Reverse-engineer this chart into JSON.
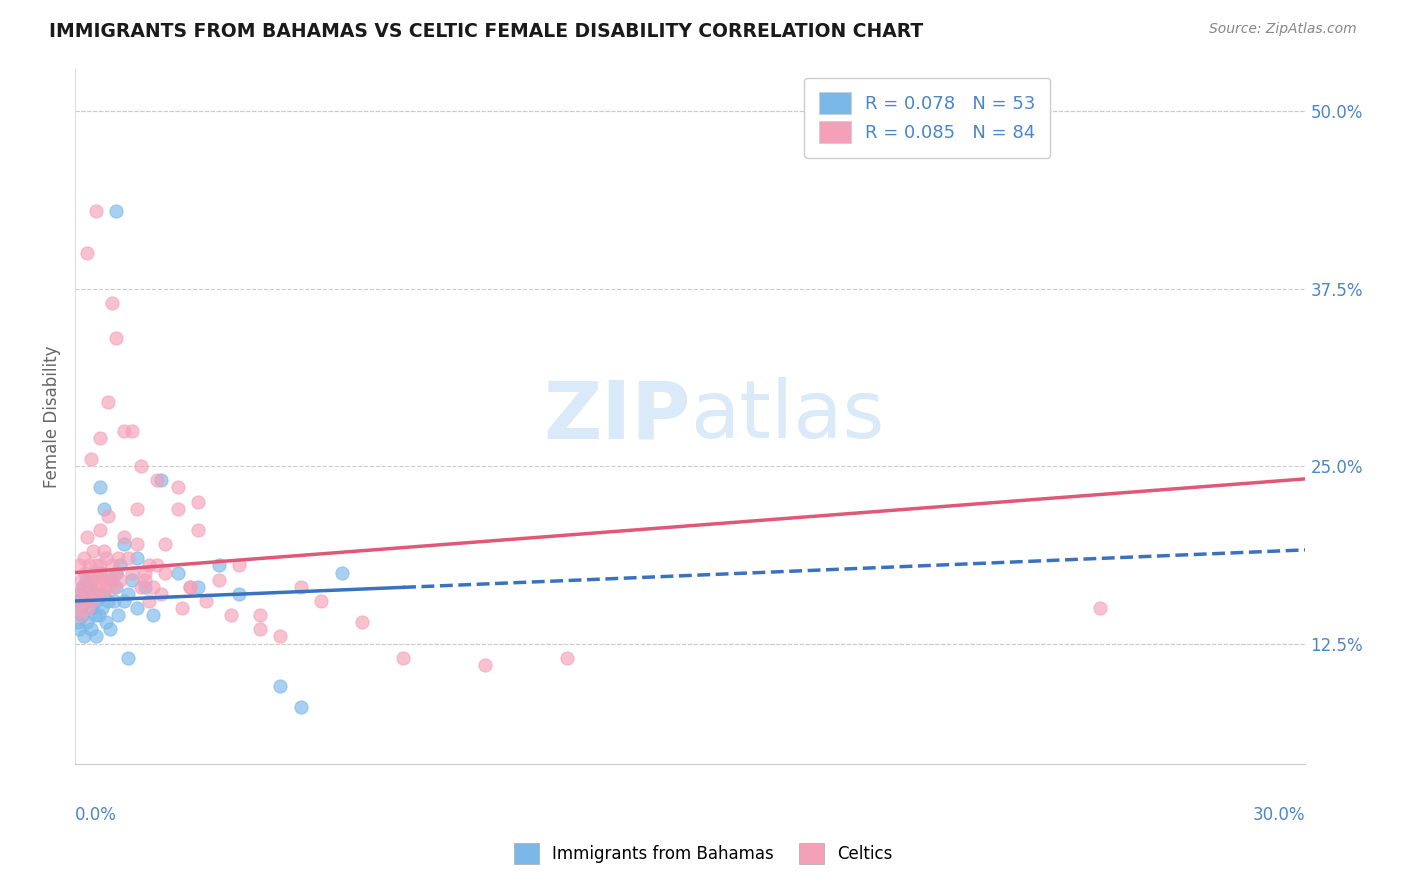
{
  "title": "IMMIGRANTS FROM BAHAMAS VS CELTIC FEMALE DISABILITY CORRELATION CHART",
  "source": "Source: ZipAtlas.com",
  "xlabel_bottom_left": "0.0%",
  "xlabel_bottom_right": "30.0%",
  "ylabel": "Female Disability",
  "yticks": [
    12.5,
    25.0,
    37.5,
    50.0
  ],
  "ytick_labels": [
    "12.5%",
    "25.0%",
    "37.5%",
    "50.0%"
  ],
  "xmin": 0.0,
  "xmax": 30.0,
  "ymin": 4.0,
  "ymax": 53.0,
  "legend1_label": "Immigrants from Bahamas",
  "legend2_label": "Celtics",
  "R1": 0.078,
  "N1": 53,
  "R2": 0.085,
  "N2": 84,
  "color_blue": "#7ab8e8",
  "color_pink": "#f4a0b8",
  "color_blue_line": "#3a72c0",
  "color_pink_line": "#e05878",
  "color_axis_label": "#4a86c8",
  "watermark_text": "ZIPatlas",
  "watermark_color": "#daeaf8",
  "blue_solid_end": 8.0,
  "blue_intercept": 15.5,
  "blue_slope": 0.12,
  "pink_intercept": 17.5,
  "pink_slope": 0.22,
  "blue_scatter_x": [
    0.05,
    0.08,
    0.1,
    0.12,
    0.15,
    0.18,
    0.2,
    0.22,
    0.25,
    0.28,
    0.3,
    0.35,
    0.38,
    0.4,
    0.42,
    0.45,
    0.48,
    0.5,
    0.52,
    0.55,
    0.58,
    0.6,
    0.65,
    0.7,
    0.75,
    0.8,
    0.85,
    0.9,
    0.95,
    1.0,
    1.05,
    1.1,
    1.2,
    1.3,
    1.4,
    1.5,
    1.7,
    1.9,
    2.1,
    2.5,
    3.0,
    3.5,
    4.0,
    5.0,
    5.5,
    6.5,
    0.6,
    0.7,
    1.0,
    1.2,
    1.5,
    1.3,
    1.0
  ],
  "blue_scatter_y": [
    15.5,
    14.0,
    13.5,
    16.0,
    15.0,
    14.5,
    16.5,
    13.0,
    15.5,
    17.0,
    14.0,
    16.5,
    15.0,
    13.5,
    17.0,
    16.0,
    14.5,
    15.5,
    13.0,
    16.0,
    14.5,
    17.5,
    15.0,
    16.0,
    14.0,
    15.5,
    13.5,
    17.0,
    15.5,
    16.5,
    14.5,
    18.0,
    15.5,
    16.0,
    17.0,
    15.0,
    16.5,
    14.5,
    24.0,
    17.5,
    16.5,
    18.0,
    16.0,
    9.5,
    8.0,
    17.5,
    23.5,
    22.0,
    17.5,
    19.5,
    18.5,
    11.5,
    43.0
  ],
  "pink_scatter_x": [
    0.05,
    0.08,
    0.1,
    0.12,
    0.15,
    0.18,
    0.2,
    0.22,
    0.25,
    0.28,
    0.3,
    0.32,
    0.35,
    0.38,
    0.4,
    0.42,
    0.45,
    0.48,
    0.5,
    0.52,
    0.55,
    0.58,
    0.6,
    0.62,
    0.65,
    0.68,
    0.7,
    0.72,
    0.75,
    0.78,
    0.8,
    0.85,
    0.9,
    0.95,
    1.0,
    1.05,
    1.1,
    1.2,
    1.3,
    1.4,
    1.5,
    1.6,
    1.7,
    1.8,
    1.9,
    2.0,
    2.2,
    2.5,
    2.8,
    3.0,
    3.5,
    4.0,
    4.5,
    5.0,
    5.5,
    6.0,
    7.0,
    8.0,
    10.0,
    12.0,
    0.4,
    0.6,
    0.8,
    1.0,
    1.2,
    1.6,
    2.0,
    2.5,
    3.0,
    1.5,
    1.8,
    2.2,
    2.8,
    3.2,
    3.8,
    4.5,
    0.3,
    0.5,
    0.9,
    1.4,
    1.7,
    2.1,
    2.6,
    25.0
  ],
  "pink_scatter_y": [
    16.0,
    15.0,
    18.0,
    14.5,
    17.0,
    16.5,
    15.5,
    18.5,
    17.5,
    16.0,
    20.0,
    15.0,
    18.0,
    17.0,
    16.5,
    15.5,
    19.0,
    17.5,
    16.0,
    18.0,
    17.0,
    16.5,
    20.5,
    18.0,
    17.5,
    16.0,
    19.0,
    17.0,
    18.5,
    16.5,
    21.5,
    17.0,
    18.0,
    16.5,
    17.5,
    18.5,
    17.0,
    20.0,
    18.5,
    17.5,
    19.5,
    16.5,
    17.0,
    15.5,
    16.5,
    18.0,
    17.5,
    22.0,
    16.5,
    20.5,
    17.0,
    18.0,
    14.5,
    13.0,
    16.5,
    15.5,
    14.0,
    11.5,
    11.0,
    11.5,
    25.5,
    27.0,
    29.5,
    34.0,
    27.5,
    25.0,
    24.0,
    23.5,
    22.5,
    22.0,
    18.0,
    19.5,
    16.5,
    15.5,
    14.5,
    13.5,
    40.0,
    43.0,
    36.5,
    27.5,
    17.5,
    16.0,
    15.0,
    15.0
  ]
}
